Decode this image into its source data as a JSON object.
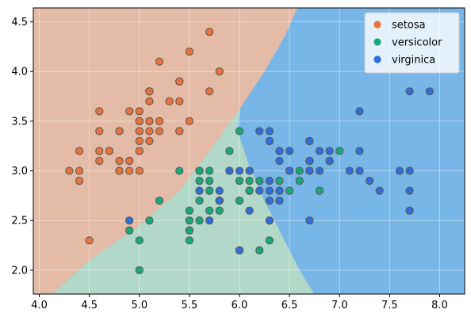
{
  "chart_data": {
    "type": "scatter",
    "title": "",
    "xlabel": "",
    "ylabel": "",
    "xlim": [
      3.94,
      8.25
    ],
    "ylim": [
      1.76,
      4.64
    ],
    "xticks": [
      "4.0",
      "4.5",
      "5.0",
      "5.5",
      "6.0",
      "6.5",
      "7.0",
      "7.5",
      "8.0"
    ],
    "yticks": [
      "2.0",
      "2.5",
      "3.0",
      "3.5",
      "4.0",
      "4.5"
    ],
    "grid": true,
    "legend_position": "top-right",
    "decision_regions": [
      {
        "name": "setosa",
        "color": "#e3bba7"
      },
      {
        "name": "versicolor",
        "color": "#b1d8c8"
      },
      {
        "name": "virginica",
        "color": "#77b6e6"
      }
    ],
    "series": [
      {
        "name": "setosa",
        "color": "#e8743b",
        "points": [
          [
            5.1,
            3.5
          ],
          [
            4.9,
            3.0
          ],
          [
            4.7,
            3.2
          ],
          [
            4.6,
            3.1
          ],
          [
            5.0,
            3.6
          ],
          [
            5.4,
            3.9
          ],
          [
            4.6,
            3.4
          ],
          [
            5.0,
            3.4
          ],
          [
            4.4,
            2.9
          ],
          [
            4.9,
            3.1
          ],
          [
            5.4,
            3.7
          ],
          [
            4.8,
            3.4
          ],
          [
            4.8,
            3.0
          ],
          [
            4.3,
            3.0
          ],
          [
            5.8,
            4.0
          ],
          [
            5.7,
            4.4
          ],
          [
            5.4,
            3.9
          ],
          [
            5.1,
            3.5
          ],
          [
            5.7,
            3.8
          ],
          [
            5.1,
            3.8
          ],
          [
            5.4,
            3.4
          ],
          [
            5.1,
            3.7
          ],
          [
            4.6,
            3.6
          ],
          [
            5.1,
            3.3
          ],
          [
            4.8,
            3.4
          ],
          [
            5.0,
            3.0
          ],
          [
            5.0,
            3.4
          ],
          [
            5.2,
            3.5
          ],
          [
            5.2,
            3.4
          ],
          [
            4.7,
            3.2
          ],
          [
            4.8,
            3.1
          ],
          [
            5.4,
            3.4
          ],
          [
            5.2,
            4.1
          ],
          [
            5.5,
            4.2
          ],
          [
            4.9,
            3.1
          ],
          [
            5.0,
            3.2
          ],
          [
            5.5,
            3.5
          ],
          [
            4.9,
            3.6
          ],
          [
            4.4,
            3.0
          ],
          [
            5.1,
            3.4
          ],
          [
            5.0,
            3.5
          ],
          [
            4.5,
            2.3
          ],
          [
            4.4,
            3.2
          ],
          [
            5.0,
            3.5
          ],
          [
            5.1,
            3.8
          ],
          [
            4.8,
            3.0
          ],
          [
            5.1,
            3.8
          ],
          [
            4.6,
            3.2
          ],
          [
            5.3,
            3.7
          ],
          [
            5.0,
            3.3
          ]
        ]
      },
      {
        "name": "versicolor",
        "color": "#19a979",
        "points": [
          [
            7.0,
            3.2
          ],
          [
            6.4,
            3.2
          ],
          [
            6.9,
            3.1
          ],
          [
            5.5,
            2.3
          ],
          [
            6.5,
            2.8
          ],
          [
            5.7,
            2.8
          ],
          [
            6.3,
            3.3
          ],
          [
            4.9,
            2.4
          ],
          [
            6.6,
            2.9
          ],
          [
            5.2,
            2.7
          ],
          [
            5.0,
            2.0
          ],
          [
            5.9,
            3.0
          ],
          [
            6.0,
            2.2
          ],
          [
            6.1,
            2.9
          ],
          [
            5.6,
            2.9
          ],
          [
            6.7,
            3.1
          ],
          [
            5.6,
            3.0
          ],
          [
            5.8,
            2.7
          ],
          [
            6.2,
            2.2
          ],
          [
            5.6,
            2.5
          ],
          [
            5.9,
            3.2
          ],
          [
            6.1,
            2.8
          ],
          [
            6.3,
            2.5
          ],
          [
            6.1,
            2.8
          ],
          [
            6.4,
            2.9
          ],
          [
            6.6,
            3.0
          ],
          [
            6.8,
            2.8
          ],
          [
            6.7,
            3.0
          ],
          [
            6.0,
            2.9
          ],
          [
            5.7,
            2.6
          ],
          [
            5.5,
            2.4
          ],
          [
            5.5,
            2.4
          ],
          [
            5.8,
            2.7
          ],
          [
            6.0,
            2.7
          ],
          [
            5.4,
            3.0
          ],
          [
            6.0,
            3.4
          ],
          [
            6.7,
            3.1
          ],
          [
            6.3,
            2.3
          ],
          [
            5.6,
            3.0
          ],
          [
            5.5,
            2.5
          ],
          [
            5.5,
            2.6
          ],
          [
            6.1,
            3.0
          ],
          [
            5.8,
            2.6
          ],
          [
            5.0,
            2.3
          ],
          [
            5.6,
            2.7
          ],
          [
            5.7,
            3.0
          ],
          [
            5.7,
            2.9
          ],
          [
            6.2,
            2.9
          ],
          [
            5.1,
            2.5
          ],
          [
            5.7,
            2.8
          ]
        ]
      },
      {
        "name": "virginica",
        "color": "#2e6fdb",
        "points": [
          [
            6.3,
            3.3
          ],
          [
            5.8,
            2.7
          ],
          [
            7.1,
            3.0
          ],
          [
            6.3,
            2.9
          ],
          [
            6.5,
            3.0
          ],
          [
            7.6,
            3.0
          ],
          [
            4.9,
            2.5
          ],
          [
            7.3,
            2.9
          ],
          [
            6.7,
            2.5
          ],
          [
            7.2,
            3.6
          ],
          [
            6.5,
            3.2
          ],
          [
            6.4,
            2.7
          ],
          [
            6.8,
            3.0
          ],
          [
            5.7,
            2.5
          ],
          [
            5.8,
            2.8
          ],
          [
            6.4,
            3.2
          ],
          [
            6.5,
            3.0
          ],
          [
            7.7,
            3.8
          ],
          [
            7.7,
            2.6
          ],
          [
            6.0,
            2.2
          ],
          [
            6.9,
            3.2
          ],
          [
            5.6,
            2.8
          ],
          [
            7.7,
            2.8
          ],
          [
            6.3,
            2.7
          ],
          [
            6.7,
            3.3
          ],
          [
            7.2,
            3.2
          ],
          [
            6.2,
            2.8
          ],
          [
            6.1,
            3.0
          ],
          [
            6.4,
            2.8
          ],
          [
            7.2,
            3.0
          ],
          [
            7.4,
            2.8
          ],
          [
            7.9,
            3.8
          ],
          [
            6.4,
            2.8
          ],
          [
            6.3,
            2.8
          ],
          [
            6.1,
            2.6
          ],
          [
            7.7,
            3.0
          ],
          [
            6.3,
            3.4
          ],
          [
            6.4,
            3.1
          ],
          [
            6.0,
            3.0
          ],
          [
            6.9,
            3.1
          ],
          [
            6.7,
            3.1
          ],
          [
            6.9,
            3.1
          ],
          [
            5.8,
            2.7
          ],
          [
            6.8,
            3.2
          ],
          [
            6.7,
            3.3
          ],
          [
            6.7,
            3.0
          ],
          [
            6.3,
            2.5
          ],
          [
            6.5,
            3.0
          ],
          [
            6.2,
            3.4
          ],
          [
            5.9,
            3.0
          ]
        ]
      }
    ]
  }
}
